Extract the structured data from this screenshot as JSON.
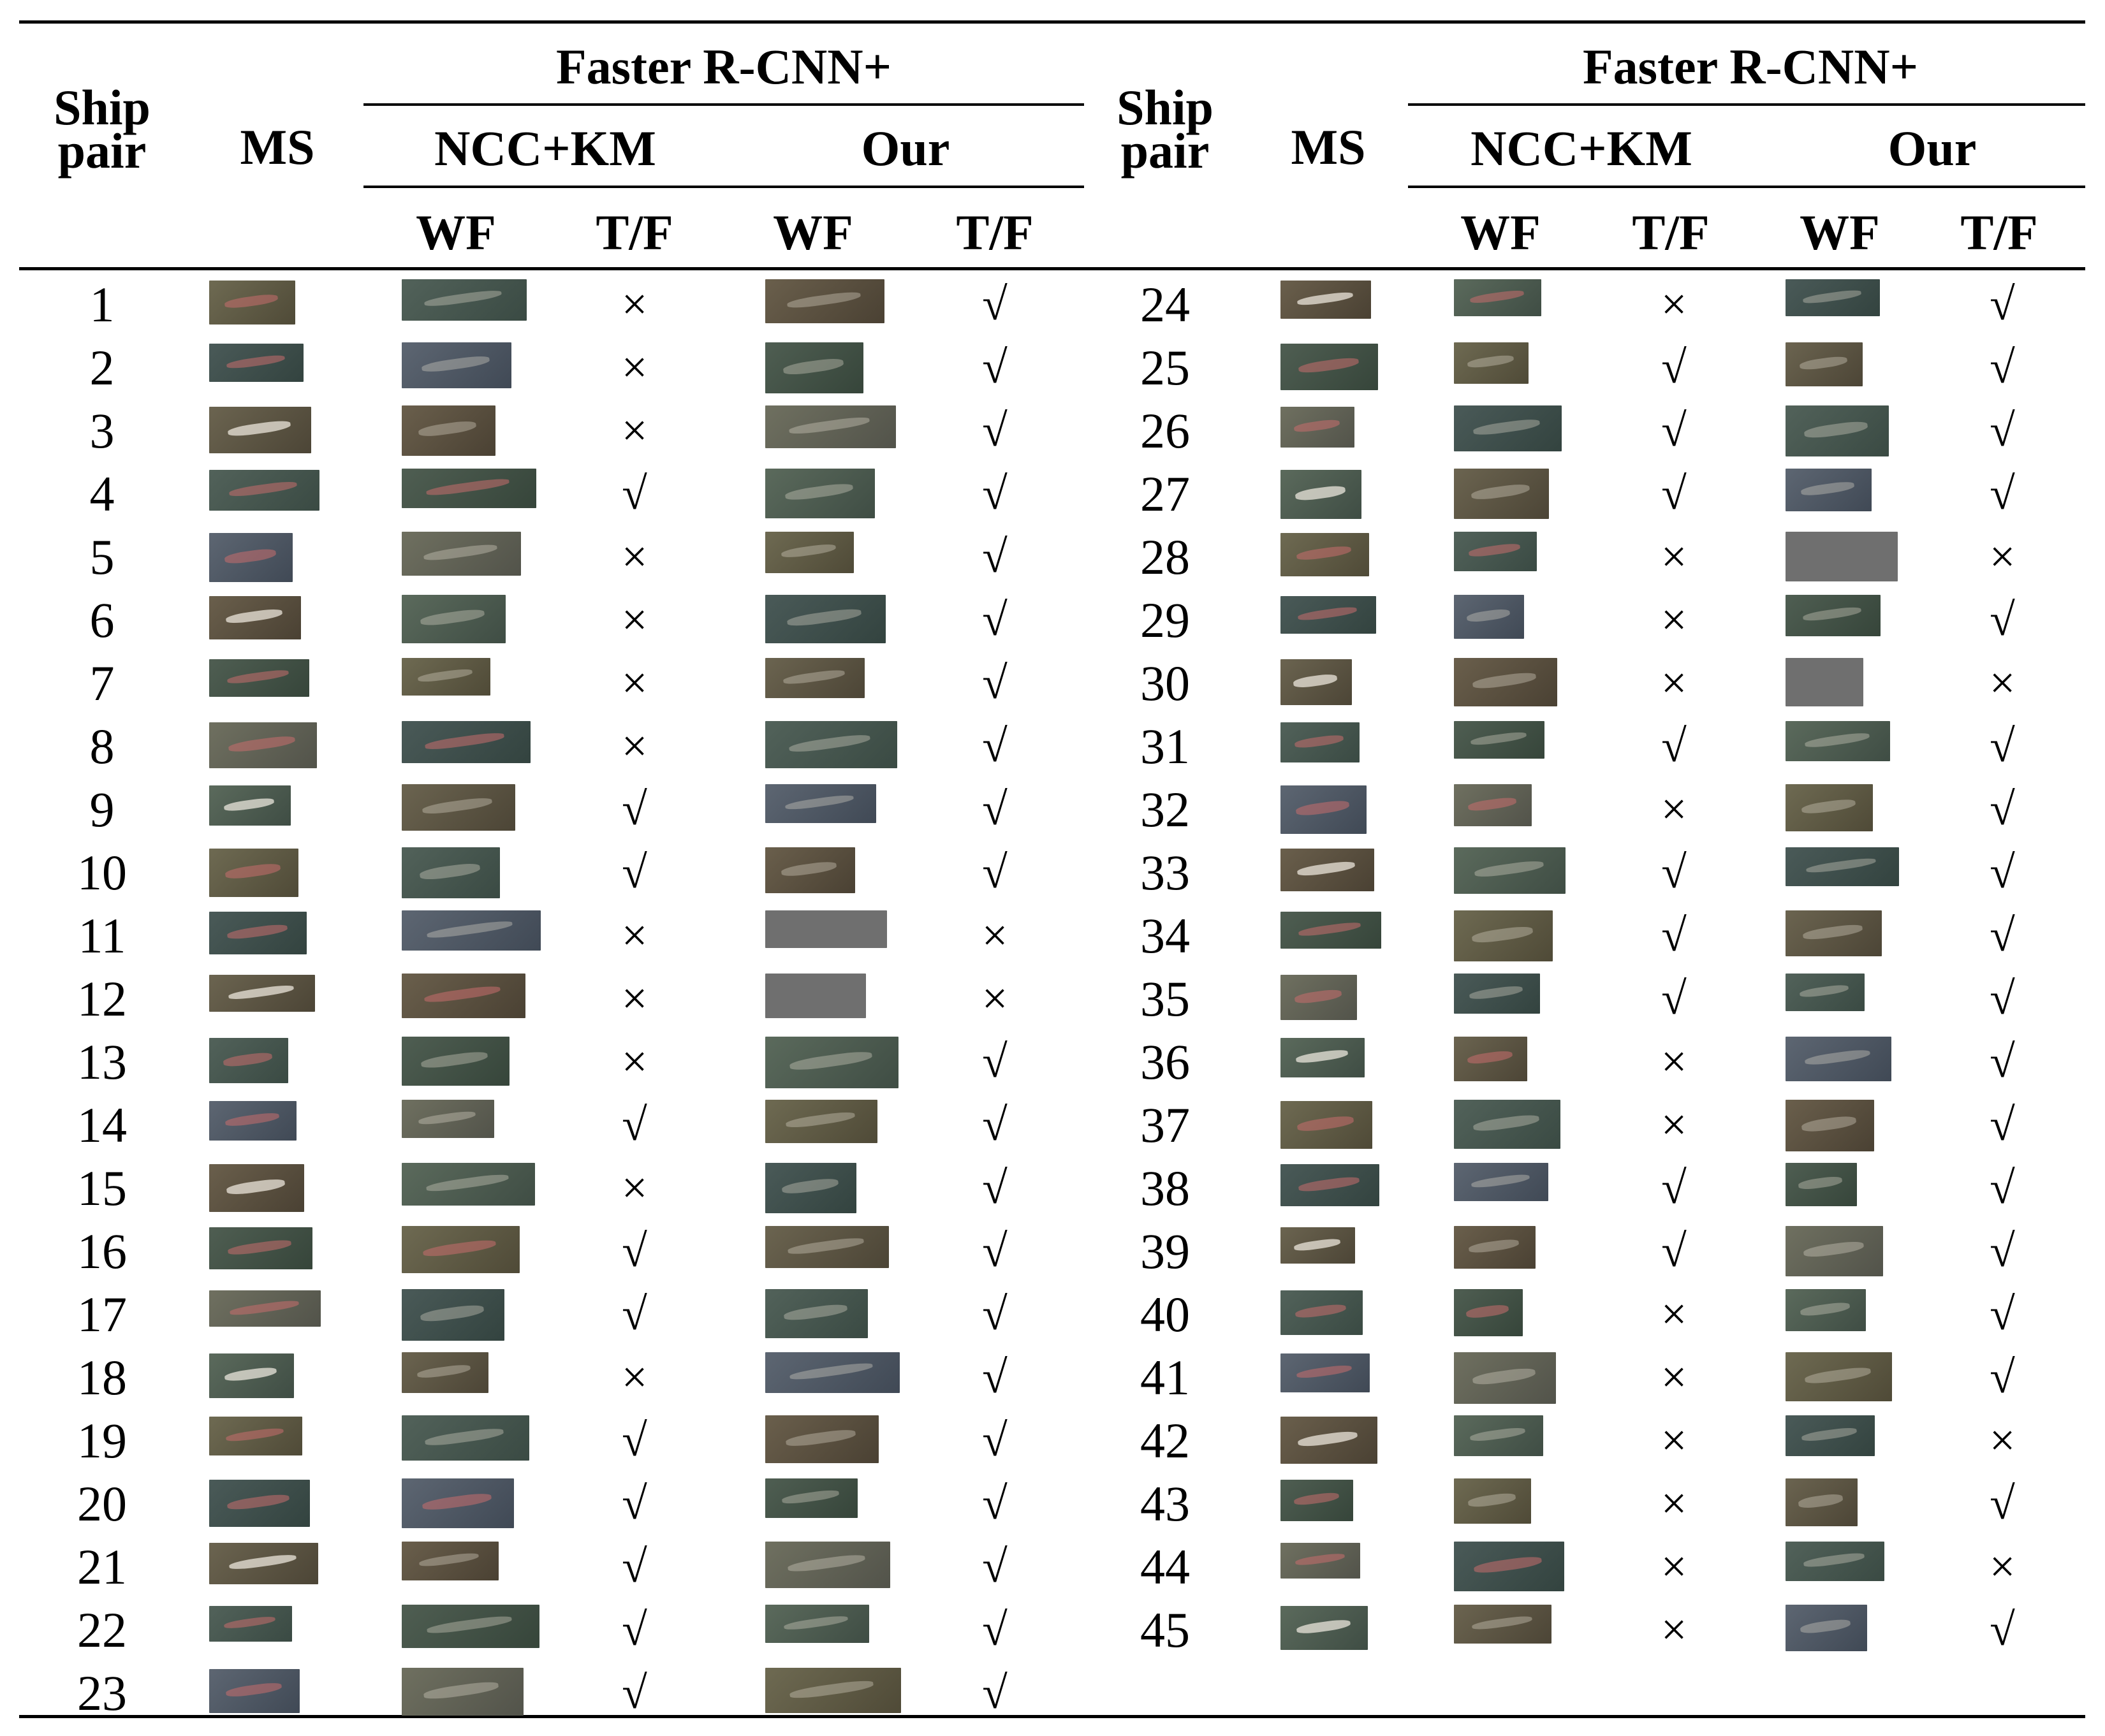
{
  "table": {
    "headers": {
      "ship_pair": "Ship pair",
      "ms": "MS",
      "group": "Faster R-CNN+",
      "method_a": "NCC+KM",
      "method_b": "Our",
      "wf": "WF",
      "tf": "T/F"
    },
    "left_rows": [
      {
        "id": "1",
        "ncc_tf": "×",
        "our_tf": "√"
      },
      {
        "id": "2",
        "ncc_tf": "×",
        "our_tf": "√"
      },
      {
        "id": "3",
        "ncc_tf": "×",
        "our_tf": "√"
      },
      {
        "id": "4",
        "ncc_tf": "√",
        "our_tf": "√"
      },
      {
        "id": "5",
        "ncc_tf": "×",
        "our_tf": "√"
      },
      {
        "id": "6",
        "ncc_tf": "×",
        "our_tf": "√"
      },
      {
        "id": "7",
        "ncc_tf": "×",
        "our_tf": "√"
      },
      {
        "id": "8",
        "ncc_tf": "×",
        "our_tf": "√"
      },
      {
        "id": "9",
        "ncc_tf": "√",
        "our_tf": "√"
      },
      {
        "id": "10",
        "ncc_tf": "√",
        "our_tf": "√"
      },
      {
        "id": "11",
        "ncc_tf": "×",
        "our_tf": "×"
      },
      {
        "id": "12",
        "ncc_tf": "×",
        "our_tf": "×"
      },
      {
        "id": "13",
        "ncc_tf": "×",
        "our_tf": "√"
      },
      {
        "id": "14",
        "ncc_tf": "√",
        "our_tf": "√"
      },
      {
        "id": "15",
        "ncc_tf": "×",
        "our_tf": "√"
      },
      {
        "id": "16",
        "ncc_tf": "√",
        "our_tf": "√"
      },
      {
        "id": "17",
        "ncc_tf": "√",
        "our_tf": "√"
      },
      {
        "id": "18",
        "ncc_tf": "×",
        "our_tf": "√"
      },
      {
        "id": "19",
        "ncc_tf": "√",
        "our_tf": "√"
      },
      {
        "id": "20",
        "ncc_tf": "√",
        "our_tf": "√"
      },
      {
        "id": "21",
        "ncc_tf": "√",
        "our_tf": "√"
      },
      {
        "id": "22",
        "ncc_tf": "√",
        "our_tf": "√"
      },
      {
        "id": "23",
        "ncc_tf": "√",
        "our_tf": "√"
      }
    ],
    "right_rows": [
      {
        "id": "24",
        "ncc_tf": "×",
        "our_tf": "√"
      },
      {
        "id": "25",
        "ncc_tf": "√",
        "our_tf": "√"
      },
      {
        "id": "26",
        "ncc_tf": "√",
        "our_tf": "√"
      },
      {
        "id": "27",
        "ncc_tf": "√",
        "our_tf": "√"
      },
      {
        "id": "28",
        "ncc_tf": "×",
        "our_tf": "×"
      },
      {
        "id": "29",
        "ncc_tf": "×",
        "our_tf": "√"
      },
      {
        "id": "30",
        "ncc_tf": "×",
        "our_tf": "×"
      },
      {
        "id": "31",
        "ncc_tf": "√",
        "our_tf": "√"
      },
      {
        "id": "32",
        "ncc_tf": "×",
        "our_tf": "√"
      },
      {
        "id": "33",
        "ncc_tf": "√",
        "our_tf": "√"
      },
      {
        "id": "34",
        "ncc_tf": "√",
        "our_tf": "√"
      },
      {
        "id": "35",
        "ncc_tf": "√",
        "our_tf": "√"
      },
      {
        "id": "36",
        "ncc_tf": "×",
        "our_tf": "√"
      },
      {
        "id": "37",
        "ncc_tf": "×",
        "our_tf": "√"
      },
      {
        "id": "38",
        "ncc_tf": "√",
        "our_tf": "√"
      },
      {
        "id": "39",
        "ncc_tf": "√",
        "our_tf": "√"
      },
      {
        "id": "40",
        "ncc_tf": "×",
        "our_tf": "√"
      },
      {
        "id": "41",
        "ncc_tf": "×",
        "our_tf": "√"
      },
      {
        "id": "42",
        "ncc_tf": "×",
        "our_tf": "×"
      },
      {
        "id": "43",
        "ncc_tf": "×",
        "our_tf": "√"
      },
      {
        "id": "44",
        "ncc_tf": "×",
        "our_tf": "×"
      },
      {
        "id": "45",
        "ncc_tf": "×",
        "our_tf": "√"
      }
    ]
  }
}
